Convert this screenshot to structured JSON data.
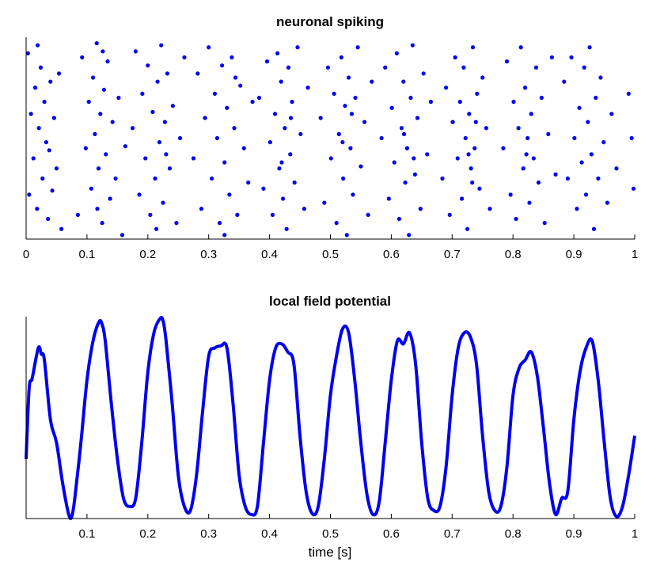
{
  "colors": {
    "series": "#0000ee",
    "axis": "#000000"
  },
  "chart_data": [
    {
      "type": "scatter",
      "title": "neuronal spiking",
      "xlabel": "",
      "ylabel": "",
      "xlim": [
        0,
        1
      ],
      "ylim": [
        0,
        1
      ],
      "grid": false,
      "xticks": [
        "0",
        "0.1",
        "0.2",
        "0.3",
        "0.4",
        "0.5",
        "0.6",
        "0.7",
        "0.8",
        "0.9",
        "1"
      ],
      "xtick_values": [
        0,
        0.1,
        0.2,
        0.3,
        0.4,
        0.5,
        0.6,
        0.7,
        0.8,
        0.9,
        1
      ],
      "points": [
        [
          0.003,
          0.92
        ],
        [
          0.008,
          0.62
        ],
        [
          0.012,
          0.4
        ],
        [
          0.015,
          0.75
        ],
        [
          0.018,
          0.15
        ],
        [
          0.021,
          0.55
        ],
        [
          0.024,
          0.85
        ],
        [
          0.027,
          0.3
        ],
        [
          0.03,
          0.68
        ],
        [
          0.033,
          0.48
        ],
        [
          0.036,
          0.1
        ],
        [
          0.04,
          0.78
        ],
        [
          0.043,
          0.24
        ],
        [
          0.046,
          0.6
        ],
        [
          0.05,
          0.35
        ],
        [
          0.054,
          0.82
        ],
        [
          0.058,
          0.05
        ],
        [
          0.005,
          0.22
        ],
        [
          0.019,
          0.96
        ],
        [
          0.038,
          0.44
        ],
        [
          0.085,
          0.12
        ],
        [
          0.092,
          0.9
        ],
        [
          0.098,
          0.45
        ],
        [
          0.103,
          0.68
        ],
        [
          0.107,
          0.25
        ],
        [
          0.11,
          0.8
        ],
        [
          0.113,
          0.52
        ],
        [
          0.116,
          0.97
        ],
        [
          0.119,
          0.35
        ],
        [
          0.122,
          0.62
        ],
        [
          0.125,
          0.08
        ],
        [
          0.128,
          0.74
        ],
        [
          0.131,
          0.42
        ],
        [
          0.134,
          0.88
        ],
        [
          0.138,
          0.2
        ],
        [
          0.142,
          0.58
        ],
        [
          0.147,
          0.3
        ],
        [
          0.152,
          0.7
        ],
        [
          0.158,
          0.02
        ],
        [
          0.163,
          0.46
        ],
        [
          0.117,
          0.15
        ],
        [
          0.126,
          0.93
        ],
        [
          0.175,
          0.55
        ],
        [
          0.18,
          0.93
        ],
        [
          0.186,
          0.22
        ],
        [
          0.191,
          0.72
        ],
        [
          0.196,
          0.4
        ],
        [
          0.2,
          0.86
        ],
        [
          0.204,
          0.12
        ],
        [
          0.208,
          0.63
        ],
        [
          0.212,
          0.3
        ],
        [
          0.216,
          0.78
        ],
        [
          0.219,
          0.48
        ],
        [
          0.222,
          0.96
        ],
        [
          0.225,
          0.18
        ],
        [
          0.228,
          0.58
        ],
        [
          0.232,
          0.82
        ],
        [
          0.236,
          0.35
        ],
        [
          0.241,
          0.66
        ],
        [
          0.247,
          0.08
        ],
        [
          0.253,
          0.5
        ],
        [
          0.26,
          0.9
        ],
        [
          0.214,
          0.05
        ],
        [
          0.23,
          0.42
        ],
        [
          0.275,
          0.4
        ],
        [
          0.282,
          0.82
        ],
        [
          0.288,
          0.15
        ],
        [
          0.294,
          0.6
        ],
        [
          0.3,
          0.95
        ],
        [
          0.305,
          0.3
        ],
        [
          0.31,
          0.72
        ],
        [
          0.314,
          0.5
        ],
        [
          0.318,
          0.08
        ],
        [
          0.322,
          0.86
        ],
        [
          0.326,
          0.38
        ],
        [
          0.33,
          0.65
        ],
        [
          0.334,
          0.22
        ],
        [
          0.338,
          0.9
        ],
        [
          0.342,
          0.55
        ],
        [
          0.347,
          0.12
        ],
        [
          0.352,
          0.76
        ],
        [
          0.358,
          0.45
        ],
        [
          0.365,
          0.28
        ],
        [
          0.372,
          0.68
        ],
        [
          0.326,
          0.02
        ],
        [
          0.344,
          0.8
        ],
        [
          0.383,
          0.7
        ],
        [
          0.39,
          0.25
        ],
        [
          0.396,
          0.88
        ],
        [
          0.401,
          0.48
        ],
        [
          0.405,
          0.12
        ],
        [
          0.409,
          0.62
        ],
        [
          0.413,
          0.92
        ],
        [
          0.416,
          0.35
        ],
        [
          0.419,
          0.78
        ],
        [
          0.422,
          0.2
        ],
        [
          0.425,
          0.55
        ],
        [
          0.428,
          0.05
        ],
        [
          0.431,
          0.85
        ],
        [
          0.434,
          0.42
        ],
        [
          0.437,
          0.68
        ],
        [
          0.441,
          0.28
        ],
        [
          0.446,
          0.95
        ],
        [
          0.451,
          0.52
        ],
        [
          0.457,
          0.15
        ],
        [
          0.463,
          0.75
        ],
        [
          0.42,
          0.38
        ],
        [
          0.435,
          0.6
        ],
        [
          0.484,
          0.6
        ],
        [
          0.49,
          0.18
        ],
        [
          0.496,
          0.85
        ],
        [
          0.501,
          0.4
        ],
        [
          0.506,
          0.72
        ],
        [
          0.51,
          0.08
        ],
        [
          0.514,
          0.52
        ],
        [
          0.518,
          0.9
        ],
        [
          0.521,
          0.3
        ],
        [
          0.524,
          0.66
        ],
        [
          0.527,
          0.02
        ],
        [
          0.53,
          0.8
        ],
        [
          0.533,
          0.45
        ],
        [
          0.537,
          0.22
        ],
        [
          0.541,
          0.7
        ],
        [
          0.545,
          0.95
        ],
        [
          0.55,
          0.36
        ],
        [
          0.556,
          0.58
        ],
        [
          0.562,
          0.12
        ],
        [
          0.568,
          0.78
        ],
        [
          0.52,
          0.48
        ],
        [
          0.535,
          0.62
        ],
        [
          0.584,
          0.5
        ],
        [
          0.59,
          0.85
        ],
        [
          0.596,
          0.2
        ],
        [
          0.601,
          0.65
        ],
        [
          0.605,
          0.38
        ],
        [
          0.609,
          0.92
        ],
        [
          0.613,
          0.1
        ],
        [
          0.617,
          0.55
        ],
        [
          0.62,
          0.78
        ],
        [
          0.623,
          0.28
        ],
        [
          0.626,
          0.45
        ],
        [
          0.629,
          0.02
        ],
        [
          0.632,
          0.7
        ],
        [
          0.635,
          0.96
        ],
        [
          0.639,
          0.32
        ],
        [
          0.643,
          0.6
        ],
        [
          0.648,
          0.15
        ],
        [
          0.653,
          0.82
        ],
        [
          0.659,
          0.42
        ],
        [
          0.665,
          0.68
        ],
        [
          0.621,
          0.52
        ],
        [
          0.637,
          0.4
        ],
        [
          0.684,
          0.3
        ],
        [
          0.69,
          0.75
        ],
        [
          0.696,
          0.12
        ],
        [
          0.701,
          0.58
        ],
        [
          0.705,
          0.9
        ],
        [
          0.709,
          0.4
        ],
        [
          0.713,
          0.68
        ],
        [
          0.716,
          0.2
        ],
        [
          0.719,
          0.85
        ],
        [
          0.722,
          0.5
        ],
        [
          0.725,
          0.05
        ],
        [
          0.728,
          0.62
        ],
        [
          0.731,
          0.35
        ],
        [
          0.734,
          0.95
        ],
        [
          0.737,
          0.45
        ],
        [
          0.741,
          0.72
        ],
        [
          0.745,
          0.25
        ],
        [
          0.75,
          0.8
        ],
        [
          0.756,
          0.55
        ],
        [
          0.762,
          0.15
        ],
        [
          0.727,
          0.42
        ],
        [
          0.739,
          0.58
        ],
        [
          0.733,
          0.28
        ],
        [
          0.784,
          0.45
        ],
        [
          0.79,
          0.88
        ],
        [
          0.796,
          0.22
        ],
        [
          0.801,
          0.68
        ],
        [
          0.805,
          0.1
        ],
        [
          0.809,
          0.55
        ],
        [
          0.813,
          0.95
        ],
        [
          0.817,
          0.35
        ],
        [
          0.82,
          0.75
        ],
        [
          0.824,
          0.5
        ],
        [
          0.827,
          0.18
        ],
        [
          0.83,
          0.62
        ],
        [
          0.834,
          0.4
        ],
        [
          0.838,
          0.85
        ],
        [
          0.842,
          0.28
        ],
        [
          0.847,
          0.7
        ],
        [
          0.852,
          0.08
        ],
        [
          0.858,
          0.52
        ],
        [
          0.864,
          0.9
        ],
        [
          0.87,
          0.32
        ],
        [
          0.822,
          0.42
        ],
        [
          0.884,
          0.78
        ],
        [
          0.89,
          0.3
        ],
        [
          0.896,
          0.9
        ],
        [
          0.901,
          0.5
        ],
        [
          0.905,
          0.15
        ],
        [
          0.909,
          0.65
        ],
        [
          0.913,
          0.38
        ],
        [
          0.917,
          0.85
        ],
        [
          0.92,
          0.22
        ],
        [
          0.923,
          0.58
        ],
        [
          0.926,
          0.95
        ],
        [
          0.929,
          0.42
        ],
        [
          0.933,
          0.05
        ],
        [
          0.936,
          0.7
        ],
        [
          0.94,
          0.3
        ],
        [
          0.944,
          0.8
        ],
        [
          0.949,
          0.48
        ],
        [
          0.955,
          0.18
        ],
        [
          0.962,
          0.62
        ],
        [
          0.97,
          0.35
        ],
        [
          0.99,
          0.72
        ],
        [
          0.998,
          0.25
        ],
        [
          0.995,
          0.5
        ]
      ]
    },
    {
      "type": "line",
      "title": "local field potential",
      "xlabel": "time [s]",
      "ylabel": "",
      "xlim": [
        0,
        1
      ],
      "ylim": [
        -1,
        1
      ],
      "grid": false,
      "xticks": [
        "0.1",
        "0.2",
        "0.3",
        "0.4",
        "0.5",
        "0.6",
        "0.7",
        "0.8",
        "0.9",
        "1"
      ],
      "xtick_values": [
        0.1,
        0.2,
        0.3,
        0.4,
        0.5,
        0.6,
        0.7,
        0.8,
        0.9,
        1
      ],
      "points": [
        [
          0,
          -0.41
        ],
        [
          0.005,
          0.29
        ],
        [
          0.01,
          0.39
        ],
        [
          0.02,
          0.69
        ],
        [
          0.025,
          0.63
        ],
        [
          0.03,
          0.57
        ],
        [
          0.04,
          -0.02
        ],
        [
          0.05,
          -0.25
        ],
        [
          0.06,
          -0.65
        ],
        [
          0.07,
          -0.96
        ],
        [
          0.075,
          -0.98
        ],
        [
          0.08,
          -0.8
        ],
        [
          0.09,
          -0.25
        ],
        [
          0.1,
          0.37
        ],
        [
          0.11,
          0.76
        ],
        [
          0.12,
          0.95
        ],
        [
          0.125,
          0.92
        ],
        [
          0.13,
          0.76
        ],
        [
          0.14,
          0.14
        ],
        [
          0.15,
          -0.41
        ],
        [
          0.16,
          -0.8
        ],
        [
          0.17,
          -0.88
        ],
        [
          0.18,
          -0.8
        ],
        [
          0.19,
          -0.25
        ],
        [
          0.2,
          0.45
        ],
        [
          0.21,
          0.84
        ],
        [
          0.22,
          0.98
        ],
        [
          0.225,
          0.96
        ],
        [
          0.23,
          0.76
        ],
        [
          0.24,
          0.14
        ],
        [
          0.25,
          -0.57
        ],
        [
          0.26,
          -0.88
        ],
        [
          0.27,
          -0.92
        ],
        [
          0.28,
          -0.57
        ],
        [
          0.29,
          0.06
        ],
        [
          0.3,
          0.61
        ],
        [
          0.31,
          0.69
        ],
        [
          0.32,
          0.71
        ],
        [
          0.33,
          0.69
        ],
        [
          0.34,
          0.14
        ],
        [
          0.35,
          -0.57
        ],
        [
          0.36,
          -0.88
        ],
        [
          0.37,
          -0.96
        ],
        [
          0.38,
          -0.88
        ],
        [
          0.39,
          -0.25
        ],
        [
          0.4,
          0.37
        ],
        [
          0.41,
          0.69
        ],
        [
          0.42,
          0.73
        ],
        [
          0.43,
          0.65
        ],
        [
          0.44,
          0.53
        ],
        [
          0.45,
          -0.18
        ],
        [
          0.46,
          -0.73
        ],
        [
          0.47,
          -0.95
        ],
        [
          0.48,
          -0.88
        ],
        [
          0.49,
          -0.41
        ],
        [
          0.5,
          0.22
        ],
        [
          0.51,
          0.61
        ],
        [
          0.52,
          0.88
        ],
        [
          0.53,
          0.84
        ],
        [
          0.54,
          0.37
        ],
        [
          0.55,
          -0.25
        ],
        [
          0.56,
          -0.76
        ],
        [
          0.57,
          -0.96
        ],
        [
          0.58,
          -0.84
        ],
        [
          0.59,
          -0.25
        ],
        [
          0.6,
          0.37
        ],
        [
          0.61,
          0.76
        ],
        [
          0.62,
          0.73
        ],
        [
          0.63,
          0.84
        ],
        [
          0.64,
          0.53
        ],
        [
          0.65,
          -0.25
        ],
        [
          0.66,
          -0.8
        ],
        [
          0.67,
          -0.92
        ],
        [
          0.68,
          -0.88
        ],
        [
          0.69,
          -0.49
        ],
        [
          0.7,
          0.22
        ],
        [
          0.71,
          0.69
        ],
        [
          0.72,
          0.84
        ],
        [
          0.73,
          0.8
        ],
        [
          0.74,
          0.53
        ],
        [
          0.75,
          -0.18
        ],
        [
          0.76,
          -0.73
        ],
        [
          0.77,
          -0.92
        ],
        [
          0.78,
          -0.88
        ],
        [
          0.79,
          -0.49
        ],
        [
          0.8,
          0.22
        ],
        [
          0.81,
          0.49
        ],
        [
          0.82,
          0.57
        ],
        [
          0.83,
          0.65
        ],
        [
          0.84,
          0.41
        ],
        [
          0.85,
          -0.1
        ],
        [
          0.86,
          -0.65
        ],
        [
          0.87,
          -0.96
        ],
        [
          0.88,
          -0.8
        ],
        [
          0.89,
          -0.73
        ],
        [
          0.9,
          -0.02
        ],
        [
          0.91,
          0.45
        ],
        [
          0.92,
          0.69
        ],
        [
          0.93,
          0.76
        ],
        [
          0.94,
          0.37
        ],
        [
          0.95,
          -0.25
        ],
        [
          0.96,
          -0.8
        ],
        [
          0.97,
          -0.98
        ],
        [
          0.98,
          -0.88
        ],
        [
          0.99,
          -0.57
        ],
        [
          1.0,
          -0.18
        ]
      ]
    }
  ]
}
